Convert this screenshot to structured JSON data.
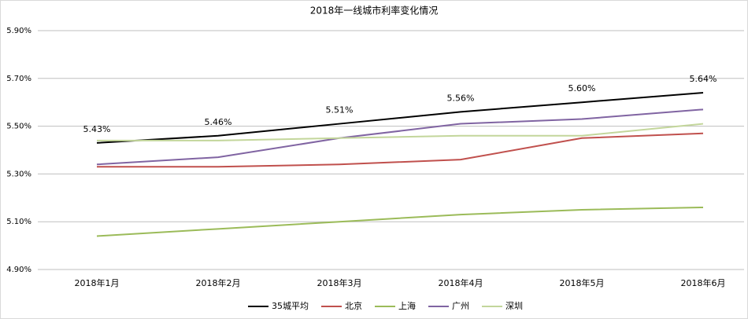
{
  "chart_data": {
    "type": "line",
    "title": "2018年一线城市利率变化情况",
    "categories": [
      "2018年1月",
      "2018年2月",
      "2018年3月",
      "2018年4月",
      "2018年5月",
      "2018年6月"
    ],
    "series": [
      {
        "name": "35城平均",
        "color": "#000000",
        "values": [
          5.43,
          5.46,
          5.51,
          5.56,
          5.6,
          5.64
        ],
        "value_labels": [
          "5.43%",
          "5.46%",
          "5.51%",
          "5.56%",
          "5.60%",
          "5.64%"
        ]
      },
      {
        "name": "北京",
        "color": "#c0504d",
        "values": [
          5.33,
          5.33,
          5.34,
          5.36,
          5.45,
          5.47
        ]
      },
      {
        "name": "上海",
        "color": "#9bbb59",
        "values": [
          5.04,
          5.07,
          5.1,
          5.13,
          5.15,
          5.16
        ]
      },
      {
        "name": "广州",
        "color": "#8064a2",
        "values": [
          5.34,
          5.37,
          5.45,
          5.51,
          5.53,
          5.57
        ]
      },
      {
        "name": "深圳",
        "color": "#c3d69b",
        "values": [
          5.44,
          5.44,
          5.45,
          5.46,
          5.46,
          5.51
        ]
      }
    ],
    "ylim": [
      4.9,
      5.9
    ],
    "yticks": [
      {
        "value": 4.9,
        "label": "4.90%"
      },
      {
        "value": 5.1,
        "label": "5.10%"
      },
      {
        "value": 5.3,
        "label": "5.30%"
      },
      {
        "value": 5.5,
        "label": "5.50%"
      },
      {
        "value": 5.7,
        "label": "5.70%"
      },
      {
        "value": 5.9,
        "label": "5.90%"
      }
    ],
    "grid": true,
    "legend": "bottom"
  }
}
